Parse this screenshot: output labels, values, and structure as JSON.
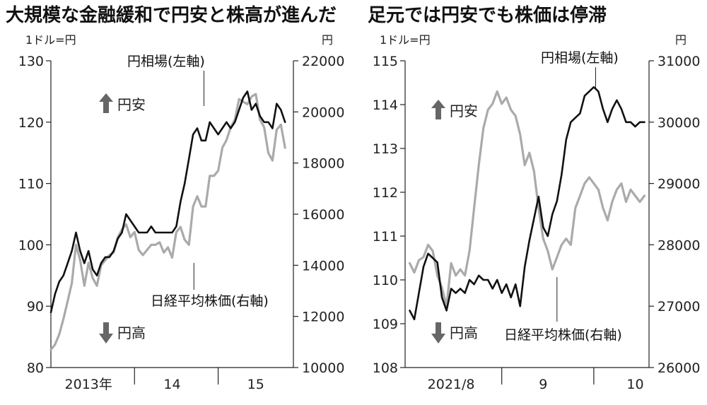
{
  "chart_data": [
    {
      "type": "line",
      "title": "大規模な金融緩和で円安と株高が進んだ",
      "left_unit": "1ドル=円",
      "right_unit": "円",
      "ylim_left": [
        80,
        130
      ],
      "ylim_right": [
        10000,
        22000
      ],
      "left_ticks": [
        80,
        90,
        100,
        110,
        120,
        130
      ],
      "right_ticks": [
        10000,
        12000,
        14000,
        16000,
        18000,
        20000,
        22000
      ],
      "x_labels": [
        "2013年",
        "14",
        "15"
      ],
      "up_label": "円安",
      "down_label": "円高",
      "series": [
        {
          "name": "円相場(左軸)",
          "axis": "left",
          "color": "#111111",
          "t": [
            0,
            0.05,
            0.1,
            0.15,
            0.2,
            0.25,
            0.3,
            0.35,
            0.4,
            0.45,
            0.5,
            0.55,
            0.6,
            0.65,
            0.7,
            0.75,
            0.8,
            0.85,
            0.9,
            0.95,
            1.0,
            1.05,
            1.1,
            1.15,
            1.2,
            1.25,
            1.3,
            1.35,
            1.4,
            1.45,
            1.5,
            1.55,
            1.6,
            1.65,
            1.7,
            1.75,
            1.8,
            1.85,
            1.9,
            1.95,
            2.0,
            2.05,
            2.1,
            2.15,
            2.2,
            2.25,
            2.3,
            2.35,
            2.4,
            2.45,
            2.5,
            2.55,
            2.6,
            2.65,
            2.7,
            2.75,
            2.8
          ],
          "values": [
            89,
            92,
            94,
            95,
            97,
            99,
            102,
            99,
            97,
            99,
            96,
            95,
            97,
            98,
            98,
            99,
            101,
            102,
            105,
            104,
            103,
            102,
            102,
            102,
            103,
            102,
            102,
            102,
            102,
            102,
            103,
            107,
            110,
            114,
            118,
            119,
            117,
            117,
            120,
            119,
            118,
            119,
            120,
            119,
            120,
            122,
            124,
            125,
            122,
            123,
            121,
            120,
            120,
            119,
            123,
            122,
            120
          ]
        },
        {
          "name": "日経平均株価(右軸)",
          "axis": "right",
          "color": "#aaaaaa",
          "t": [
            0,
            0.05,
            0.1,
            0.15,
            0.2,
            0.25,
            0.3,
            0.35,
            0.4,
            0.45,
            0.5,
            0.55,
            0.6,
            0.65,
            0.7,
            0.75,
            0.8,
            0.85,
            0.9,
            0.95,
            1.0,
            1.05,
            1.1,
            1.15,
            1.2,
            1.25,
            1.3,
            1.35,
            1.4,
            1.45,
            1.5,
            1.55,
            1.6,
            1.65,
            1.7,
            1.75,
            1.8,
            1.85,
            1.9,
            1.95,
            2.0,
            2.05,
            2.1,
            2.15,
            2.2,
            2.25,
            2.3,
            2.35,
            2.4,
            2.45,
            2.5,
            2.55,
            2.6,
            2.65,
            2.7,
            2.75,
            2.8
          ],
          "values": [
            10700,
            10900,
            11300,
            11900,
            12600,
            13300,
            14800,
            14200,
            13200,
            14100,
            13500,
            13200,
            14000,
            14200,
            14400,
            14500,
            15100,
            15400,
            15600,
            15100,
            15300,
            14600,
            14400,
            14600,
            14800,
            14800,
            14900,
            14500,
            14700,
            14300,
            15300,
            15500,
            15000,
            14800,
            16300,
            16700,
            16300,
            16300,
            17500,
            17500,
            17700,
            18600,
            18900,
            19400,
            19700,
            20500,
            20400,
            20300,
            20600,
            20700,
            19700,
            19400,
            18400,
            18100,
            19300,
            19500,
            18600
          ]
        }
      ]
    },
    {
      "type": "line",
      "title": "足元では円安でも株価は停滞",
      "left_unit": "1ドル=円",
      "right_unit": "円",
      "ylim_left": [
        108,
        115
      ],
      "ylim_right": [
        26000,
        31000
      ],
      "left_ticks": [
        108,
        109,
        110,
        111,
        112,
        113,
        114,
        115
      ],
      "right_ticks": [
        26000,
        27000,
        28000,
        29000,
        30000,
        31000
      ],
      "x_labels": [
        "2021/8",
        "9",
        "10"
      ],
      "up_label": "円安",
      "down_label": "円高",
      "series": [
        {
          "name": "円相場(左軸)",
          "axis": "left",
          "color": "#111111",
          "t": [
            0,
            0.05,
            0.1,
            0.15,
            0.2,
            0.25,
            0.3,
            0.35,
            0.4,
            0.45,
            0.5,
            0.55,
            0.6,
            0.65,
            0.7,
            0.75,
            0.8,
            0.85,
            0.9,
            0.95,
            1.0,
            1.05,
            1.1,
            1.15,
            1.2,
            1.25,
            1.3,
            1.35,
            1.4,
            1.45,
            1.5,
            1.55,
            1.6,
            1.65,
            1.7,
            1.75,
            1.8,
            1.85,
            1.9,
            1.95,
            2.0,
            2.05,
            2.1,
            2.15,
            2.2,
            2.25,
            2.3,
            2.35,
            2.4,
            2.45,
            2.5,
            2.55
          ],
          "values": [
            109.3,
            109.1,
            109.7,
            110.3,
            110.6,
            110.5,
            110.4,
            109.6,
            109.3,
            109.8,
            109.7,
            109.8,
            109.7,
            110.0,
            109.9,
            110.1,
            110.0,
            110.0,
            109.8,
            110.0,
            109.7,
            109.9,
            109.6,
            109.9,
            109.4,
            110.3,
            110.9,
            111.4,
            111.9,
            111.2,
            111.0,
            111.5,
            111.8,
            112.4,
            113.2,
            113.6,
            113.7,
            113.8,
            114.2,
            114.3,
            114.4,
            114.3,
            113.9,
            113.6,
            113.9,
            114.1,
            113.9,
            113.6,
            113.6,
            113.5,
            113.6,
            113.6
          ]
        },
        {
          "name": "日経平均株価(右軸)",
          "axis": "right",
          "color": "#aaaaaa",
          "t": [
            0,
            0.05,
            0.1,
            0.15,
            0.2,
            0.25,
            0.3,
            0.35,
            0.4,
            0.45,
            0.5,
            0.55,
            0.6,
            0.65,
            0.7,
            0.75,
            0.8,
            0.85,
            0.9,
            0.95,
            1.0,
            1.05,
            1.1,
            1.15,
            1.2,
            1.25,
            1.3,
            1.35,
            1.4,
            1.45,
            1.5,
            1.55,
            1.6,
            1.65,
            1.7,
            1.75,
            1.8,
            1.85,
            1.9,
            1.95,
            2.0,
            2.05,
            2.1,
            2.15,
            2.2,
            2.25,
            2.3,
            2.35,
            2.4,
            2.45,
            2.5,
            2.55
          ],
          "values": [
            27700,
            27550,
            27750,
            27800,
            28000,
            27900,
            27500,
            27300,
            27000,
            27700,
            27500,
            27600,
            27500,
            27900,
            28600,
            29300,
            29900,
            30200,
            30300,
            30500,
            30300,
            30400,
            30200,
            30100,
            29800,
            29300,
            29500,
            29200,
            28600,
            28100,
            27900,
            27600,
            27800,
            28000,
            28100,
            28000,
            28600,
            28800,
            29000,
            29100,
            29000,
            28900,
            28600,
            28400,
            28700,
            28900,
            29000,
            28700,
            28900,
            28800,
            28700,
            28800
          ]
        }
      ]
    }
  ]
}
